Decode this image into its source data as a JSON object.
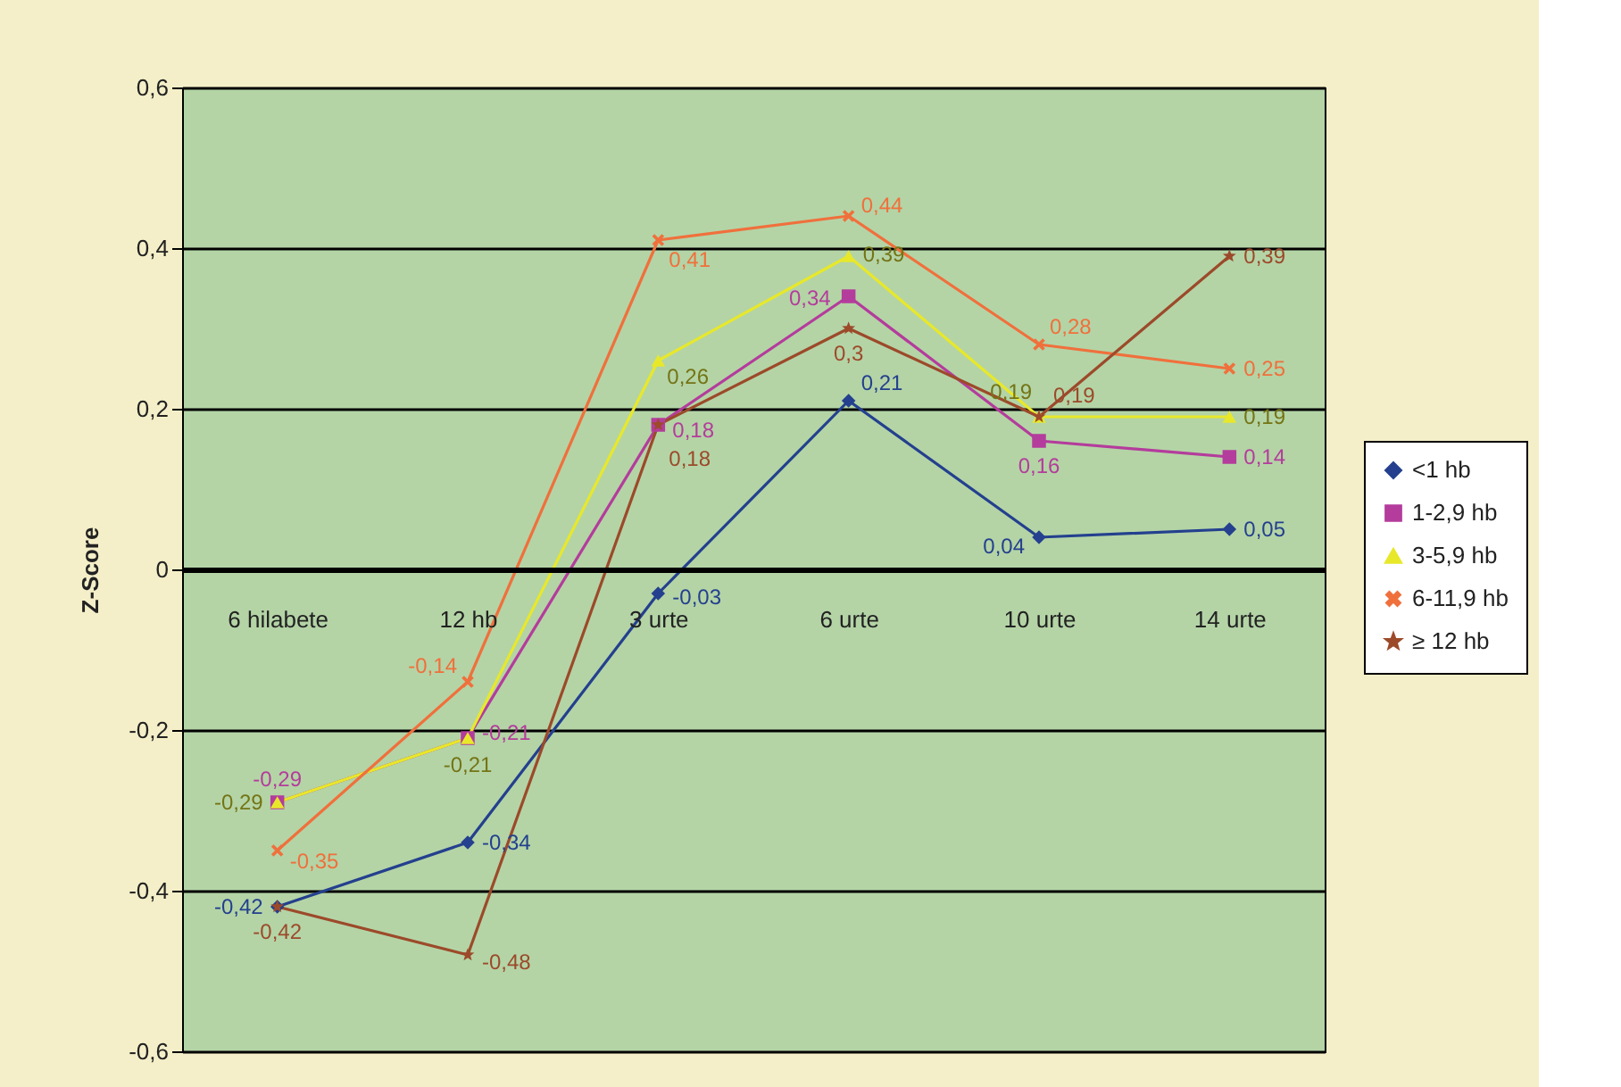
{
  "chart_data": {
    "type": "line",
    "ylabel": "Z-Score",
    "categories": [
      "6 hilabete",
      "12 hb",
      "3 urte",
      "6 urte",
      "10 urte",
      "14 urte"
    ],
    "series": [
      {
        "name": "<1 hb",
        "color": "#24408e",
        "marker": "diamond",
        "values": [
          -0.42,
          -0.34,
          -0.03,
          0.21,
          0.04,
          0.05
        ],
        "value_labels": [
          "-0,42",
          "-0,34",
          "-0,03",
          "0,21",
          "0,04",
          "0,05"
        ]
      },
      {
        "name": "1-2,9 hb",
        "color": "#b43c9c",
        "marker": "square",
        "values": [
          -0.29,
          -0.21,
          0.18,
          0.34,
          0.16,
          0.14
        ],
        "value_labels": [
          "-0,29",
          "-0,21",
          "0,18",
          "0,34",
          "0,16",
          "0,14"
        ]
      },
      {
        "name": "3-5,9 hb",
        "color": "#e8e82a",
        "marker": "triangle",
        "values": [
          -0.29,
          -0.21,
          0.26,
          0.39,
          0.19,
          0.19
        ],
        "value_labels": [
          "-0,29",
          "-0,21",
          "0,26",
          "0,39",
          "0,19",
          "0,19"
        ]
      },
      {
        "name": "6-11,9 hb",
        "color": "#f0703c",
        "marker": "cross",
        "values": [
          -0.35,
          -0.14,
          0.41,
          0.44,
          0.28,
          0.25
        ],
        "value_labels": [
          "-0,35",
          "-0,14",
          "0,41",
          "0,44",
          "0,28",
          "0,25"
        ]
      },
      {
        "name": "≥ 12 hb",
        "color": "#9c4a2a",
        "marker": "star",
        "values": [
          -0.42,
          -0.48,
          0.18,
          0.3,
          0.19,
          0.39
        ],
        "value_labels": [
          "-0,42",
          "-0,48",
          "0,18",
          "0,3",
          "0,19",
          "0,39"
        ]
      }
    ],
    "ylim": [
      -0.6,
      0.6
    ],
    "yticks": [
      {
        "value": -0.6,
        "label": "-0,6"
      },
      {
        "value": -0.4,
        "label": "-0,4"
      },
      {
        "value": -0.2,
        "label": "-0,2"
      },
      0,
      {
        "value": 0.2,
        "label": "0,2"
      },
      {
        "value": 0.4,
        "label": "0,4"
      },
      {
        "value": 0.6,
        "label": "0,6"
      }
    ],
    "grid": "y",
    "legend": "right"
  }
}
